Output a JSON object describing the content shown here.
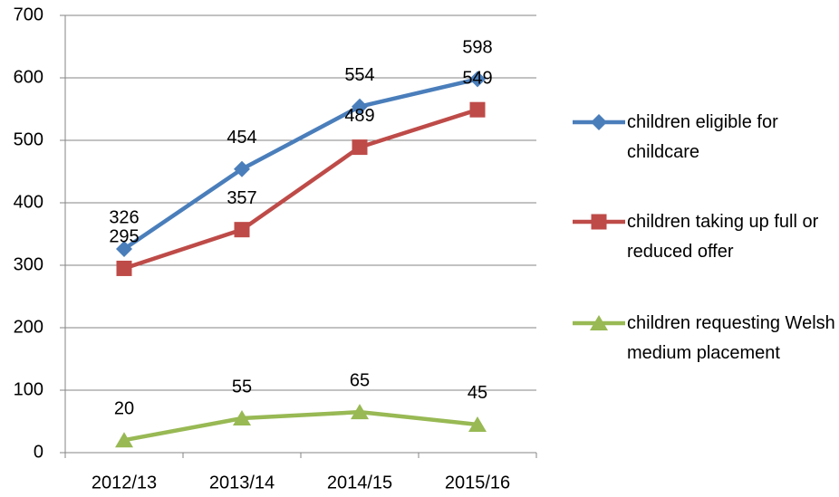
{
  "chart_data": {
    "type": "line",
    "categories": [
      "2012/13",
      "2013/14",
      "2014/15",
      "2015/16"
    ],
    "series": [
      {
        "name": "children eligible for childcare",
        "color": "#4a7ebb",
        "marker": "diamond",
        "values": [
          326,
          454,
          554,
          598
        ]
      },
      {
        "name": "children taking up full or reduced offer",
        "color": "#be4b48",
        "marker": "square",
        "values": [
          295,
          357,
          489,
          549
        ]
      },
      {
        "name": "children requesting Welsh medium placement",
        "color": "#98b954",
        "marker": "triangle",
        "values": [
          20,
          55,
          65,
          45
        ]
      }
    ],
    "ylim": [
      0,
      700
    ],
    "yticks": [
      0,
      100,
      200,
      300,
      400,
      500,
      600,
      700
    ],
    "grid": true,
    "legend": "right"
  }
}
